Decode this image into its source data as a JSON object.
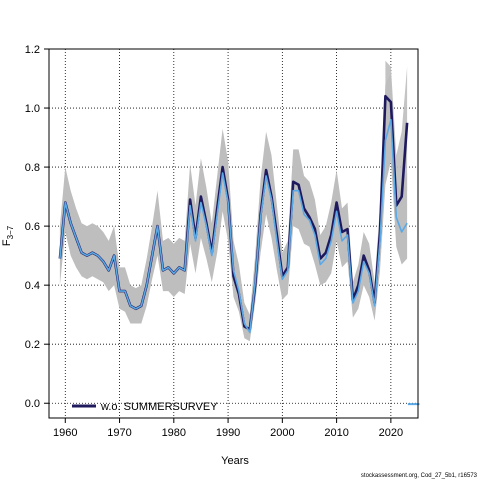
{
  "chart_data": {
    "type": "line",
    "xlabel": "Years",
    "ylabel": "F",
    "ylabel_subscript": "3−7",
    "xlim": [
      1957,
      2025
    ],
    "ylim": [
      -0.05,
      1.2
    ],
    "xticks": [
      1960,
      1970,
      1980,
      1990,
      2000,
      2010,
      2020
    ],
    "yticks": [
      0.0,
      0.2,
      0.4,
      0.6,
      0.8,
      1.0,
      1.2
    ],
    "ytick_labels": [
      "0.0",
      "0.2",
      "0.4",
      "0.6",
      "0.8",
      "1.0",
      "1.2"
    ],
    "grid": true,
    "legend_position": "bottom-left",
    "footer": "stockassessment.org, Cod_27_5b1, r16573",
    "colors": {
      "band": "#bebebe",
      "base": "#5aa9e6",
      "comparison": "#1f1a5e"
    },
    "x": [
      1959,
      1960,
      1961,
      1962,
      1963,
      1964,
      1965,
      1966,
      1967,
      1968,
      1969,
      1970,
      1971,
      1972,
      1973,
      1974,
      1975,
      1976,
      1977,
      1978,
      1979,
      1980,
      1981,
      1982,
      1983,
      1984,
      1985,
      1986,
      1987,
      1988,
      1989,
      1990,
      1991,
      1992,
      1993,
      1994,
      1995,
      1996,
      1997,
      1998,
      1999,
      2000,
      2001,
      2002,
      2003,
      2004,
      2005,
      2006,
      2007,
      2008,
      2009,
      2010,
      2011,
      2012,
      2013,
      2014,
      2015,
      2016,
      2017,
      2018,
      2019,
      2020,
      2021,
      2022,
      2023
    ],
    "series": [
      {
        "role": "base",
        "values": [
          0.49,
          0.68,
          0.61,
          0.56,
          0.51,
          0.5,
          0.51,
          0.5,
          0.48,
          0.45,
          0.5,
          0.38,
          0.38,
          0.33,
          0.32,
          0.33,
          0.4,
          0.5,
          0.6,
          0.45,
          0.46,
          0.44,
          0.46,
          0.45,
          0.67,
          0.55,
          0.68,
          0.6,
          0.5,
          0.64,
          0.78,
          0.68,
          0.45,
          0.38,
          0.27,
          0.24,
          0.41,
          0.63,
          0.77,
          0.69,
          0.55,
          0.42,
          0.45,
          0.72,
          0.72,
          0.64,
          0.62,
          0.57,
          0.47,
          0.49,
          0.55,
          0.65,
          0.55,
          0.57,
          0.34,
          0.38,
          0.48,
          0.44,
          0.33,
          0.55,
          0.89,
          0.96,
          0.63,
          0.58,
          0.61
        ]
      },
      {
        "name": "w.o. SUMMERSURVEY",
        "role": "comparison",
        "values": [
          0.49,
          0.68,
          0.61,
          0.56,
          0.51,
          0.5,
          0.51,
          0.5,
          0.48,
          0.45,
          0.5,
          0.38,
          0.38,
          0.33,
          0.32,
          0.33,
          0.4,
          0.5,
          0.6,
          0.45,
          0.46,
          0.44,
          0.46,
          0.45,
          0.69,
          0.56,
          0.7,
          0.61,
          0.51,
          0.66,
          0.8,
          0.69,
          0.43,
          0.37,
          0.26,
          0.25,
          0.4,
          0.64,
          0.79,
          0.7,
          0.57,
          0.43,
          0.46,
          0.75,
          0.74,
          0.66,
          0.63,
          0.59,
          0.49,
          0.51,
          0.57,
          0.68,
          0.58,
          0.59,
          0.35,
          0.4,
          0.5,
          0.45,
          0.34,
          0.58,
          1.04,
          1.02,
          0.67,
          0.7,
          0.95
        ]
      }
    ],
    "band": {
      "lower": [
        0.4,
        0.58,
        0.5,
        0.46,
        0.43,
        0.42,
        0.43,
        0.42,
        0.41,
        0.38,
        0.4,
        0.32,
        0.31,
        0.27,
        0.27,
        0.27,
        0.33,
        0.42,
        0.5,
        0.38,
        0.38,
        0.36,
        0.38,
        0.37,
        0.54,
        0.44,
        0.56,
        0.49,
        0.41,
        0.51,
        0.65,
        0.55,
        0.36,
        0.31,
        0.22,
        0.21,
        0.34,
        0.51,
        0.64,
        0.56,
        0.45,
        0.35,
        0.37,
        0.6,
        0.59,
        0.54,
        0.53,
        0.47,
        0.4,
        0.41,
        0.44,
        0.55,
        0.46,
        0.48,
        0.29,
        0.32,
        0.4,
        0.36,
        0.28,
        0.45,
        0.74,
        0.82,
        0.53,
        0.47,
        0.49
      ],
      "upper": [
        0.6,
        0.8,
        0.72,
        0.66,
        0.61,
        0.6,
        0.61,
        0.6,
        0.58,
        0.55,
        0.6,
        0.46,
        0.46,
        0.4,
        0.39,
        0.4,
        0.49,
        0.6,
        0.72,
        0.55,
        0.56,
        0.54,
        0.56,
        0.55,
        0.81,
        0.67,
        0.83,
        0.73,
        0.61,
        0.77,
        0.93,
        0.82,
        0.55,
        0.47,
        0.34,
        0.3,
        0.5,
        0.76,
        0.92,
        0.84,
        0.67,
        0.51,
        0.55,
        0.86,
        0.86,
        0.77,
        0.75,
        0.69,
        0.57,
        0.6,
        0.68,
        0.79,
        0.66,
        0.68,
        0.41,
        0.47,
        0.58,
        0.54,
        0.41,
        0.67,
        1.08,
        1.12,
        0.75,
        0.72,
        0.78
      ]
    },
    "comparison_band": {
      "x": [
        2019,
        2020,
        2021,
        2022,
        2023
      ],
      "lower": [
        0.88,
        0.86,
        0.62,
        0.58,
        0.72
      ],
      "upper": [
        1.16,
        1.14,
        0.84,
        0.92,
        1.14
      ]
    },
    "offscale_marks": {
      "x": [
        2023.5,
        2024.2,
        2024.9
      ],
      "y": -0.003
    }
  }
}
